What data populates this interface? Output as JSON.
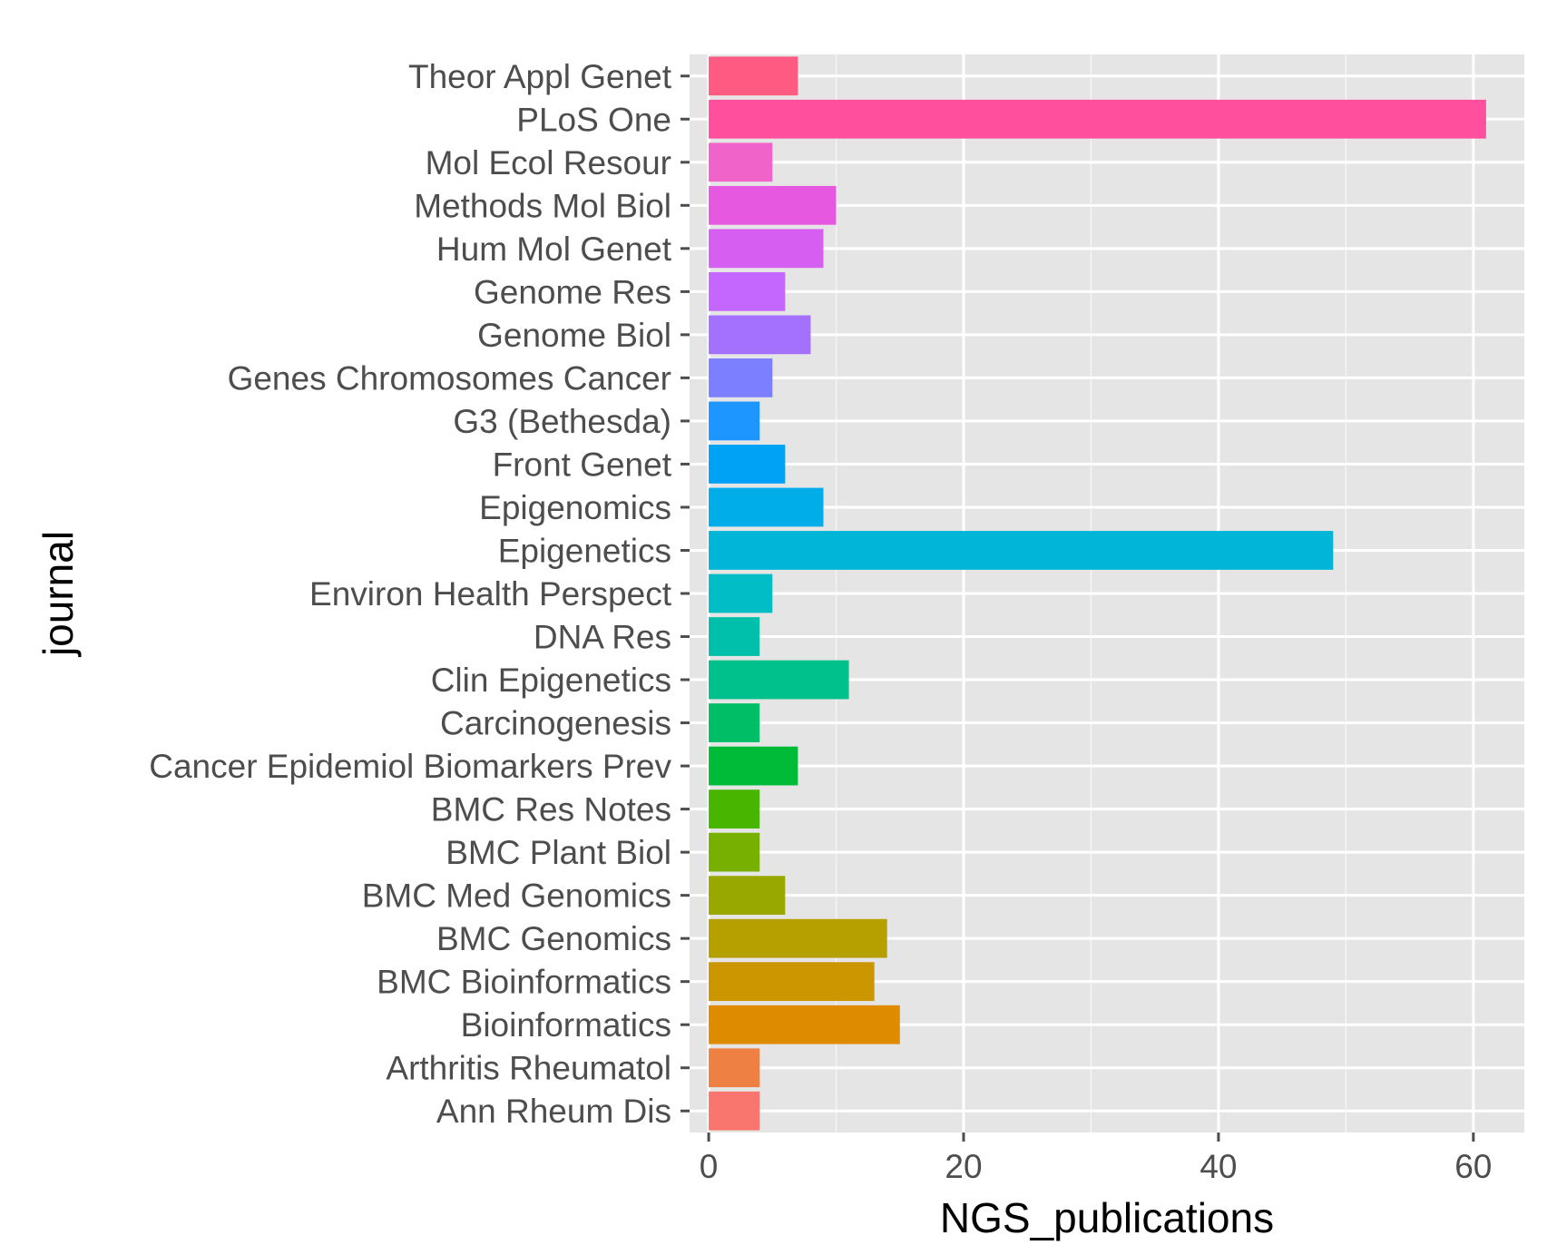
{
  "chart_data": {
    "type": "bar",
    "orientation": "horizontal",
    "title": "",
    "xlabel": "NGS_publications",
    "ylabel": "journal",
    "xlim": [
      -1.5,
      64
    ],
    "xticks": [
      0,
      20,
      40,
      60
    ],
    "grid": true,
    "legend": "none",
    "panel_background": "#e5e5e5",
    "grid_color": "#ffffff",
    "categories": [
      "Ann Rheum Dis",
      "Arthritis Rheumatol",
      "Bioinformatics",
      "BMC Bioinformatics",
      "BMC Genomics",
      "BMC Med Genomics",
      "BMC Plant Biol",
      "BMC Res Notes",
      "Cancer Epidemiol Biomarkers Prev",
      "Carcinogenesis",
      "Clin Epigenetics",
      "DNA Res",
      "Environ Health Perspect",
      "Epigenetics",
      "Epigenomics",
      "Front Genet",
      "G3 (Bethesda)",
      "Genes Chromosomes Cancer",
      "Genome Biol",
      "Genome Res",
      "Hum Mol Genet",
      "Methods Mol Biol",
      "Mol Ecol Resour",
      "PLoS One",
      "Theor Appl Genet"
    ],
    "values": [
      4,
      4,
      15,
      13,
      14,
      6,
      4,
      4,
      7,
      4,
      11,
      4,
      5,
      49,
      9,
      6,
      4,
      5,
      8,
      6,
      9,
      10,
      5,
      61,
      7
    ],
    "colors": [
      "#f8766d",
      "#ee8044",
      "#de8b00",
      "#cb9600",
      "#b5a000",
      "#99a800",
      "#78b000",
      "#48b600",
      "#00bb38",
      "#00be65",
      "#00c08b",
      "#00c0ab",
      "#00bdc6",
      "#00b5d7",
      "#00ade8",
      "#00a2f5",
      "#1e96ff",
      "#7c7fff",
      "#a471ff",
      "#c367ff",
      "#d65ef0",
      "#e658e0",
      "#f063c8",
      "#ff4f9d",
      "#ff5a82"
    ]
  }
}
